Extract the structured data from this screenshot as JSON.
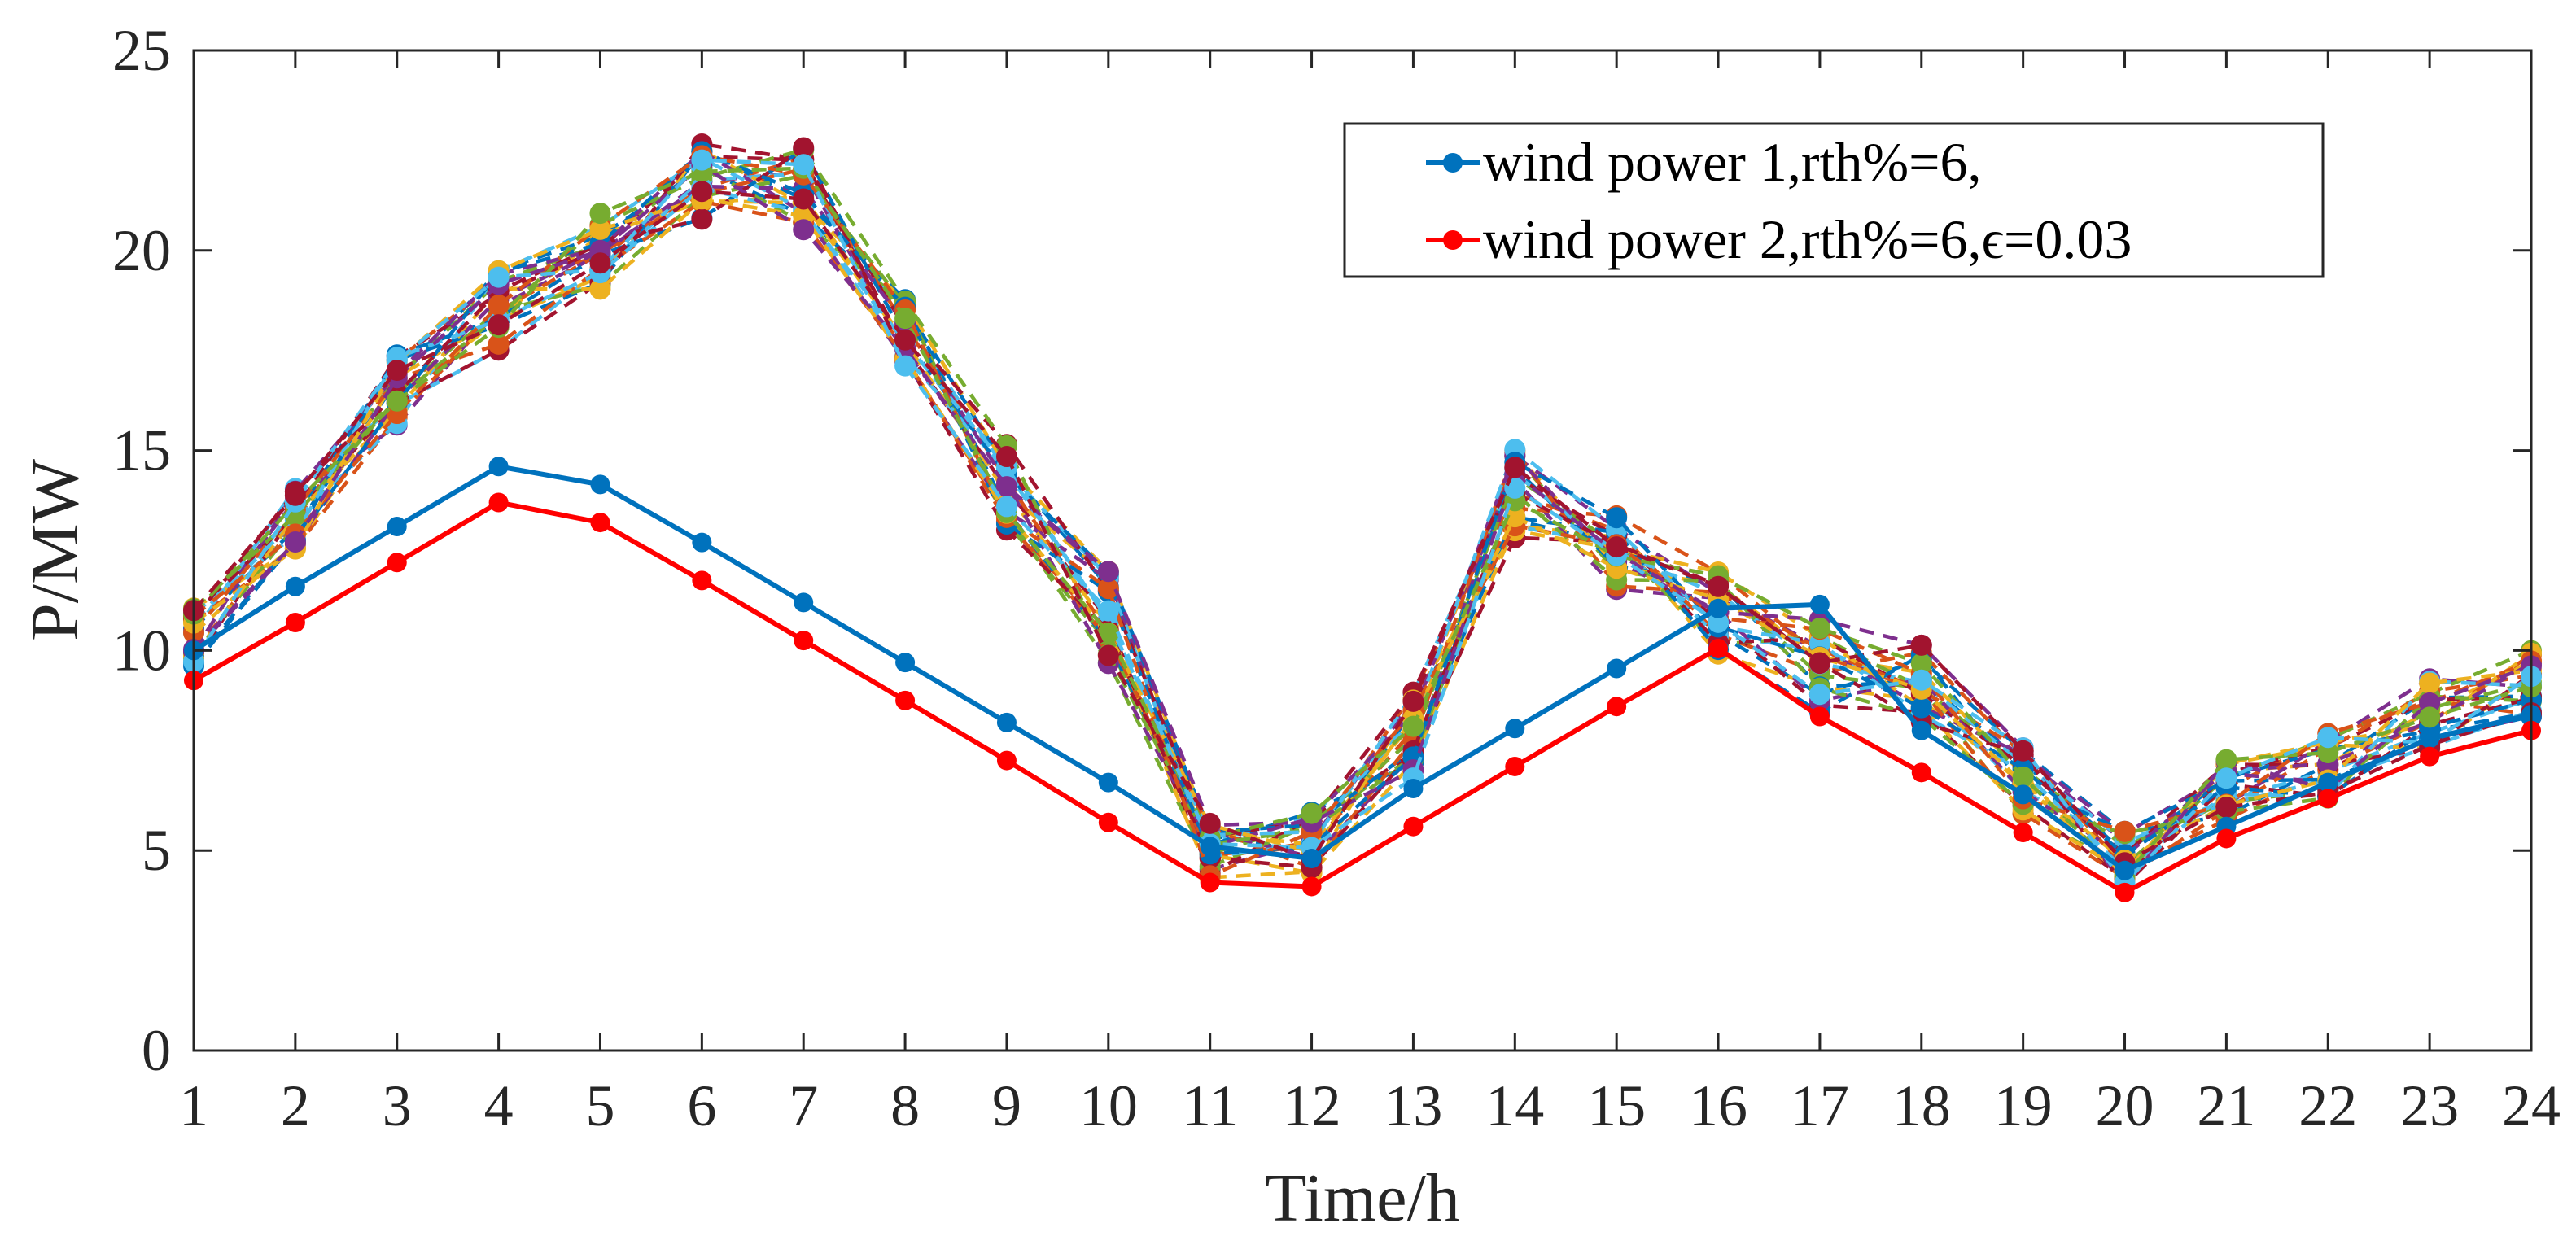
{
  "chart_data": {
    "type": "line",
    "title": "",
    "xlabel": "Time/h",
    "ylabel": "P/MW",
    "xlim": [
      1,
      24
    ],
    "ylim": [
      0,
      25
    ],
    "xticks": [
      "1",
      "2",
      "3",
      "4",
      "5",
      "6",
      "7",
      "8",
      "9",
      "10",
      "11",
      "12",
      "13",
      "14",
      "15",
      "16",
      "17",
      "18",
      "19",
      "20",
      "21",
      "22",
      "23",
      "24"
    ],
    "yticks": [
      "0",
      "5",
      "10",
      "15",
      "20",
      "25"
    ],
    "x": [
      1,
      2,
      3,
      4,
      5,
      6,
      7,
      8,
      9,
      10,
      11,
      12,
      13,
      14,
      15,
      16,
      17,
      18,
      19,
      20,
      21,
      22,
      23,
      24
    ],
    "grid": false,
    "legend_location": "top-right",
    "series": [
      {
        "name": "wind power 1,rth%=6,",
        "color": "#0072BD",
        "values": [
          10.0,
          11.6,
          13.1,
          14.6,
          14.15,
          12.7,
          11.2,
          9.7,
          8.2,
          6.7,
          5.1,
          4.8,
          6.55,
          8.05,
          9.55,
          11.05,
          11.15,
          8.0,
          6.4,
          4.5,
          5.6,
          6.7,
          7.8,
          8.4
        ]
      },
      {
        "name": "wind power 2,rth%=6,ϵ=0.03",
        "color": "#FF0000",
        "values": [
          9.25,
          10.7,
          12.2,
          13.7,
          13.2,
          11.75,
          10.25,
          8.75,
          7.25,
          5.7,
          4.2,
          4.1,
          5.6,
          7.1,
          8.6,
          10.05,
          8.35,
          6.95,
          5.45,
          3.95,
          5.3,
          6.3,
          7.35,
          8.0
        ]
      }
    ],
    "scenario_series": {
      "description": "Dashed scenario curves (unlabeled in legend)",
      "colors": [
        "#0072BD",
        "#D95319",
        "#EDB120",
        "#7E2F8E",
        "#77AC30",
        "#4DBEEE",
        "#A2142F"
      ],
      "base_values": [
        10.3,
        13.4,
        16.5,
        18.5,
        20.0,
        21.7,
        21.6,
        17.9,
        14.1,
        10.8,
        5.0,
        5.2,
        7.8,
        14.0,
        12.5,
        11.0,
        9.6,
        9.2,
        6.8,
        4.9,
        6.5,
        7.2,
        8.4,
        9.1
      ],
      "spread": [
        0.8,
        0.9,
        0.9,
        1.0,
        1.0,
        1.0,
        1.1,
        0.9,
        1.1,
        1.2,
        0.8,
        0.8,
        1.2,
        1.2,
        1.0,
        1.1,
        1.2,
        1.0,
        0.9,
        0.8,
        0.8,
        0.9,
        0.9,
        0.9
      ],
      "count": 28
    }
  }
}
